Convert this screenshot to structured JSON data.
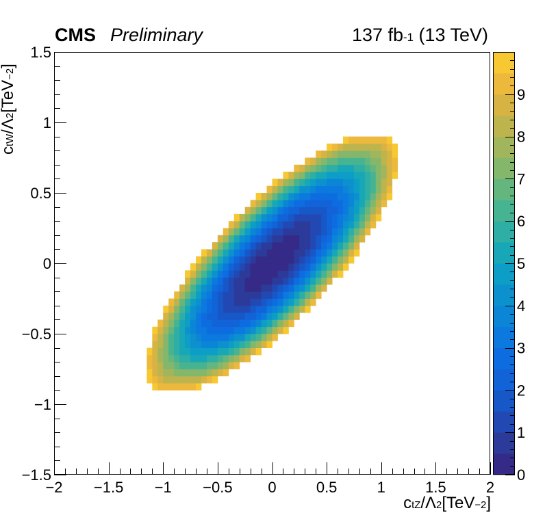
{
  "header": {
    "experiment": "CMS",
    "status": "Preliminary",
    "lumi_value": "137 fb",
    "lumi_exp": "-1",
    "energy": " (13 TeV)"
  },
  "chart_data": {
    "type": "heatmap",
    "title": "",
    "xlabel": "c_tZ/Λ^2[TeV^-2]",
    "ylabel": "c_tW/Λ^2[TeV^-2]",
    "xlim": [
      -2,
      2
    ],
    "ylim": [
      -1.5,
      1.5
    ],
    "xticks": [
      -2,
      -1.5,
      -1,
      -0.5,
      0,
      0.5,
      1,
      1.5,
      2
    ],
    "yticks": [
      -1.5,
      -1,
      -0.5,
      0,
      0.5,
      1,
      1.5
    ],
    "z_range": [
      0,
      10
    ],
    "z_ticks": [
      0,
      1,
      2,
      3,
      4,
      5,
      6,
      7,
      8,
      9
    ],
    "z_levels": 20,
    "binning": {
      "nx": 80,
      "ny": 60
    },
    "minimum": {
      "x": 0.0,
      "y": 0.0,
      "z": 0
    },
    "covariance": {
      "sxx": 0.134,
      "syy": 0.085,
      "sxy": 0.0846
    },
    "cutoff_z": 10,
    "grid": false,
    "legend": "colorbar-right",
    "colors": {
      "frame": "#000000",
      "palette": [
        "#352a87",
        "#2c3b9a",
        "#2249b3",
        "#1758c9",
        "#1262d8",
        "#0d6de0",
        "#0b79de",
        "#0b85d6",
        "#0d91ce",
        "#0c9ec6",
        "#18a7b7",
        "#2eaea4",
        "#46b391",
        "#64b67e",
        "#84b76c",
        "#a1b65c",
        "#bdb44e",
        "#d7b343",
        "#ecb93d",
        "#f7c831",
        "#f9fb0e"
      ]
    }
  }
}
